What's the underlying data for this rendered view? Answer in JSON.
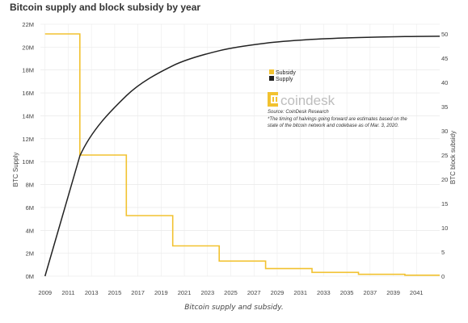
{
  "title": "Bitcoin supply and block subsidy by year",
  "caption": "Bitcoin supply and subsidy.",
  "brand": {
    "name": "coindesk",
    "logo_icon": "coindesk-logo-icon"
  },
  "note": {
    "source": "Source: CoinDesk Research",
    "line1": "*The timing of halvings going forward are estimates based on the",
    "line2": "state of the bitcoin network and codebase as of Mar. 3, 2020."
  },
  "chart_data": {
    "type": "line",
    "title": "Bitcoin supply and block subsidy by year",
    "ylabel_left": "BTC Supply",
    "ylabel_right": "BTC block subsidy",
    "ylim_left": [
      0,
      22000000
    ],
    "ylim_right": [
      0,
      52
    ],
    "xlim": [
      2008.6,
      2043
    ],
    "x_ticks": [
      "2009",
      "2011",
      "2013",
      "2015",
      "2017",
      "2019",
      "2021",
      "2023",
      "2025",
      "2027",
      "2029",
      "2031",
      "2033",
      "2035",
      "2037",
      "2039",
      "2041"
    ],
    "y_ticks_left": [
      "0M",
      "2M",
      "4M",
      "6M",
      "8M",
      "10M",
      "12M",
      "14M",
      "16M",
      "18M",
      "20M",
      "22M"
    ],
    "y_ticks_right": [
      "0",
      "5",
      "10",
      "15",
      "20",
      "25",
      "30",
      "35",
      "40",
      "45",
      "50"
    ],
    "grid": true,
    "legend_position": "center",
    "colors": {
      "subsidy": "#f2c230",
      "supply": "#222222"
    },
    "series": [
      {
        "name": "Subsidy",
        "axis": "right",
        "step": true,
        "x": [
          2009,
          2012,
          2016,
          2020,
          2024,
          2028,
          2032,
          2036,
          2040,
          2043
        ],
        "y": [
          50,
          25,
          12.5,
          6.25,
          3.125,
          1.5625,
          0.78125,
          0.390625,
          0.1953125,
          0.1953125
        ]
      },
      {
        "name": "Supply",
        "axis": "left",
        "x": [
          2009,
          2012,
          2016,
          2020,
          2024,
          2028,
          2032,
          2036,
          2040,
          2043
        ],
        "y": [
          0,
          10500000,
          15750000,
          18375000,
          19687500,
          20343750,
          20671875,
          20835937,
          20917968,
          20950000
        ]
      }
    ]
  }
}
